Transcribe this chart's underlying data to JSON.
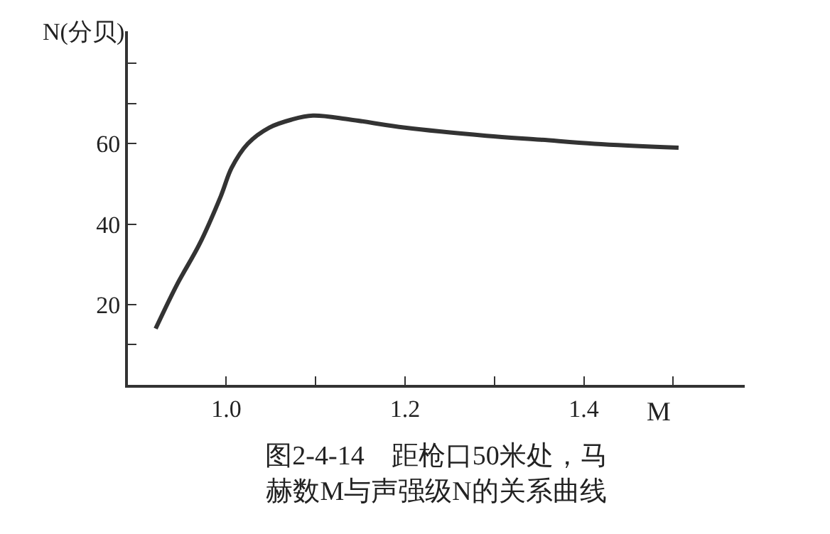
{
  "chart_data": {
    "type": "line",
    "title": "图2-4-14　距枪口50米处，马赫数M与声强级N的关系曲线",
    "xlabel": "M",
    "ylabel": "N(分贝)",
    "x": [
      0.921,
      0.945,
      0.97,
      0.994,
      1.006,
      1.024,
      1.048,
      1.073,
      1.097,
      1.139,
      1.2,
      1.291,
      1.352,
      1.412,
      1.506
    ],
    "series": [
      {
        "color": "#333333",
        "values": [
          14,
          25,
          35,
          47,
          54,
          60,
          64,
          66,
          67,
          66,
          64,
          62,
          61,
          60,
          59
        ]
      }
    ],
    "xlim": [
      0.89,
      1.58
    ],
    "xticks": [
      {
        "value": 1.0,
        "label": "1.0"
      },
      {
        "value": 1.1,
        "label": null
      },
      1.2,
      {
        "value": 1.3,
        "label": null
      },
      1.4,
      {
        "value": 1.5,
        "label": null
      }
    ],
    "ylim": [
      0,
      88
    ],
    "yticks": [
      {
        "value": 10,
        "label": null
      },
      20,
      40,
      60,
      {
        "value": 70,
        "label": null
      },
      {
        "value": 80,
        "label": null
      }
    ],
    "marker": "none",
    "line_style": "solid"
  }
}
